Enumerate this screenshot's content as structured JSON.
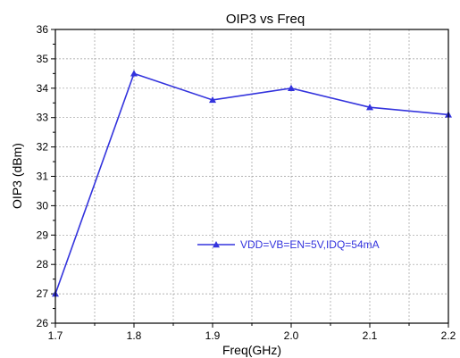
{
  "chart_data": {
    "type": "line",
    "title": "OIP3 vs Freq",
    "xlabel": "Freq(GHz)",
    "ylabel": "OIP3 (dBm)",
    "xlim": [
      1.7,
      2.2
    ],
    "ylim": [
      26,
      36
    ],
    "x_ticks": [
      "1.7",
      "1.8",
      "1.9",
      "2.0",
      "2.1",
      "2.2"
    ],
    "y_ticks": [
      "26",
      "27",
      "28",
      "29",
      "30",
      "31",
      "32",
      "33",
      "34",
      "35",
      "36"
    ],
    "grid": true,
    "legend_position": "center-right",
    "series": [
      {
        "name": "VDD=VB=EN=5V,IDQ=54mA",
        "color": "#3333dd",
        "marker": "triangle",
        "x": [
          1.7,
          1.8,
          1.9,
          2.0,
          2.1,
          2.2
        ],
        "y": [
          27.0,
          34.5,
          33.6,
          34.0,
          33.35,
          33.1
        ]
      }
    ]
  }
}
